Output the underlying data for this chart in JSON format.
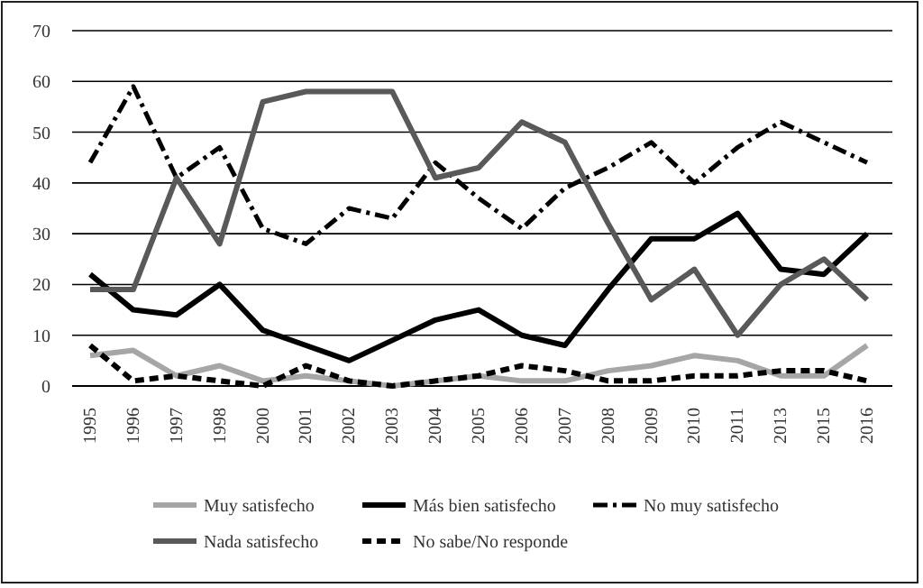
{
  "chart_data": {
    "type": "line",
    "categories": [
      "1995",
      "1996",
      "1997",
      "1998",
      "2000",
      "2001",
      "2002",
      "2003",
      "2004",
      "2005",
      "2006",
      "2007",
      "2008",
      "2009",
      "2010",
      "2011",
      "2013",
      "2015",
      "2016"
    ],
    "series": [
      {
        "name": "Muy satisfecho",
        "color": "#a6a6a6",
        "line_style": "solid",
        "values": [
          6,
          7,
          2,
          4,
          1,
          2,
          1,
          0,
          1,
          2,
          1,
          1,
          3,
          4,
          6,
          5,
          2,
          2,
          8
        ]
      },
      {
        "name": "Más bien satisfecho",
        "color": "#000000",
        "line_style": "solid",
        "values": [
          22,
          15,
          14,
          20,
          11,
          8,
          5,
          9,
          13,
          15,
          10,
          8,
          19,
          29,
          29,
          34,
          23,
          22,
          30
        ]
      },
      {
        "name": "No muy satisfecho",
        "color": "#000000",
        "line_style": "dashdot",
        "values": [
          44,
          59,
          41,
          47,
          31,
          28,
          35,
          33,
          44,
          37,
          31,
          39,
          43,
          48,
          40,
          47,
          52,
          48,
          44
        ]
      },
      {
        "name": "Nada satisfecho",
        "color": "#595959",
        "line_style": "solid",
        "values": [
          19,
          19,
          41,
          28,
          56,
          58,
          58,
          58,
          41,
          43,
          52,
          48,
          32,
          17,
          23,
          10,
          20,
          25,
          17
        ]
      },
      {
        "name": "No sabe/No responde",
        "color": "#000000",
        "line_style": "dashed",
        "values": [
          8,
          1,
          2,
          1,
          0,
          4,
          1,
          0,
          1,
          2,
          4,
          3,
          1,
          1,
          2,
          2,
          3,
          3,
          1
        ]
      }
    ],
    "ylim": [
      0,
      70
    ],
    "yticks": [
      0,
      10,
      20,
      30,
      40,
      50,
      60,
      70
    ],
    "grid": "y",
    "legend": "bottom",
    "marker": "none"
  }
}
